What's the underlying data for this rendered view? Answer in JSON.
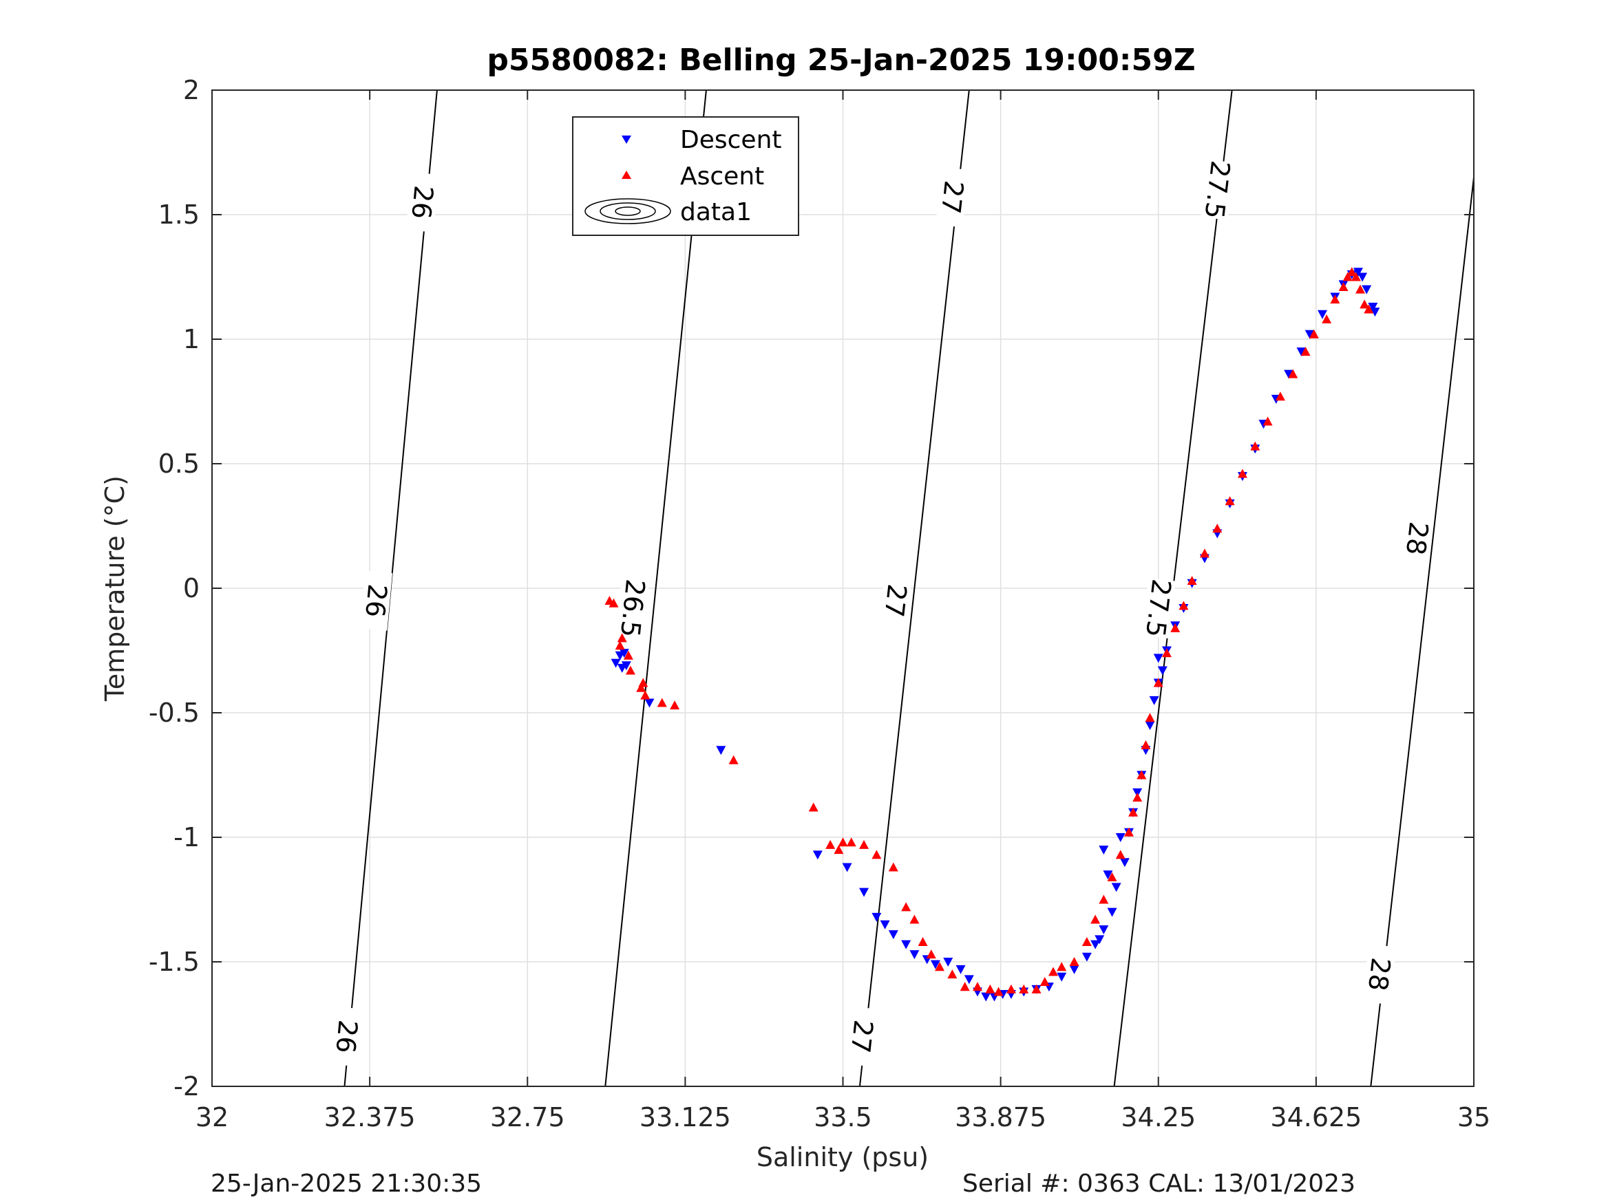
{
  "chart_data": {
    "type": "scatter",
    "title": "p5580082: Belling 25-Jan-2025 19:00:59Z",
    "xlabel": "Salinity (psu)",
    "ylabel": "Temperature (°C)",
    "xlim": [
      32,
      35
    ],
    "ylim": [
      -2,
      2
    ],
    "xticks": [
      32,
      32.375,
      32.75,
      33.125,
      33.5,
      33.875,
      34.25,
      34.625,
      35
    ],
    "xtick_labels": [
      "32",
      "32.375",
      "32.75",
      "33.125",
      "33.5",
      "33.875",
      "34.25",
      "34.625",
      "35"
    ],
    "yticks": [
      -2,
      -1.5,
      -1,
      -0.5,
      0,
      0.5,
      1,
      1.5,
      2
    ],
    "ytick_labels": [
      "-2",
      "-1.5",
      "-1",
      "-0.5",
      "0",
      "0.5",
      "1",
      "1.5",
      "2"
    ],
    "grid": true,
    "legend_position": "top-center",
    "legend": [
      "Descent",
      "Ascent",
      "data1"
    ],
    "contour_levels": [
      {
        "level": "26",
        "line": [
          [
            32.315,
            -2
          ],
          [
            32.535,
            2
          ]
        ],
        "label_points": [
          [
            32.32,
            -1.8
          ],
          [
            32.39,
            -0.05
          ],
          [
            32.5,
            1.55
          ]
        ]
      },
      {
        "level": "26.5",
        "line": [
          [
            32.935,
            -2
          ],
          [
            33.175,
            2
          ]
        ],
        "label_points": [
          [
            33.0,
            -0.08
          ],
          [
            33.1,
            1.6
          ]
        ]
      },
      {
        "level": "27",
        "line": [
          [
            33.54,
            -2
          ],
          [
            33.8,
            2
          ]
        ],
        "label_points": [
          [
            33.545,
            -1.8
          ],
          [
            33.625,
            -0.05
          ],
          [
            33.76,
            1.57
          ]
        ]
      },
      {
        "level": "27.5",
        "line": [
          [
            34.145,
            -2
          ],
          [
            34.425,
            2
          ]
        ],
        "label_points": [
          [
            34.25,
            -0.08
          ],
          [
            34.39,
            1.6
          ]
        ]
      },
      {
        "level": "28",
        "line": [
          [
            34.755,
            -2
          ],
          [
            35.0,
            1.65
          ]
        ],
        "label_points": [
          [
            34.775,
            -1.55
          ],
          [
            34.865,
            0.2
          ]
        ]
      }
    ],
    "series": [
      {
        "name": "Descent",
        "color": "#0000ff",
        "marker": "triangle-down",
        "x": [
          32.97,
          32.96,
          32.975,
          32.98,
          32.985,
          33.04,
          33.21,
          33.44,
          33.51,
          33.55,
          33.58,
          33.6,
          33.62,
          33.65,
          33.67,
          33.7,
          33.72,
          33.75,
          33.78,
          33.8,
          33.82,
          33.84,
          33.86,
          33.88,
          33.9,
          33.93,
          33.96,
          33.99,
          34.02,
          34.05,
          34.08,
          34.1,
          34.12,
          34.14,
          34.11,
          34.13,
          34.12,
          34.15,
          34.16,
          34.17,
          34.18,
          34.19,
          34.2,
          34.21,
          34.22,
          34.23,
          34.24,
          34.25,
          34.25,
          34.26,
          34.27,
          34.29,
          34.31,
          34.33,
          34.36,
          34.39,
          34.42,
          34.45,
          34.48,
          34.5,
          34.53,
          34.56,
          34.59,
          34.61,
          34.64,
          34.67,
          34.69,
          34.71,
          34.725,
          34.735,
          34.745,
          34.76,
          34.765
        ],
        "y": [
          -0.27,
          -0.3,
          -0.32,
          -0.26,
          -0.31,
          -0.46,
          -0.65,
          -1.07,
          -1.12,
          -1.22,
          -1.32,
          -1.35,
          -1.39,
          -1.43,
          -1.47,
          -1.49,
          -1.51,
          -1.5,
          -1.53,
          -1.57,
          -1.62,
          -1.64,
          -1.64,
          -1.63,
          -1.63,
          -1.62,
          -1.61,
          -1.6,
          -1.56,
          -1.53,
          -1.48,
          -1.43,
          -1.37,
          -1.3,
          -1.41,
          -1.15,
          -1.05,
          -1.2,
          -1.0,
          -1.1,
          -0.98,
          -0.9,
          -0.82,
          -0.75,
          -0.65,
          -0.55,
          -0.45,
          -0.38,
          -0.28,
          -0.33,
          -0.25,
          -0.15,
          -0.08,
          0.02,
          0.12,
          0.22,
          0.34,
          0.45,
          0.56,
          0.66,
          0.76,
          0.86,
          0.95,
          1.02,
          1.1,
          1.17,
          1.22,
          1.26,
          1.27,
          1.25,
          1.2,
          1.13,
          1.11
        ]
      },
      {
        "name": "Ascent",
        "color": "#ff0000",
        "marker": "triangle-up",
        "x": [
          32.945,
          32.955,
          32.97,
          32.975,
          32.99,
          32.995,
          33.02,
          33.025,
          33.03,
          33.07,
          33.1,
          33.24,
          33.43,
          33.47,
          33.49,
          33.5,
          33.52,
          33.55,
          33.58,
          33.62,
          33.65,
          33.67,
          33.69,
          33.71,
          33.73,
          33.76,
          33.79,
          33.82,
          33.85,
          33.87,
          33.9,
          33.93,
          33.96,
          33.98,
          34.0,
          34.02,
          34.05,
          34.08,
          34.1,
          34.12,
          34.14,
          34.16,
          34.18,
          34.19,
          34.2,
          34.21,
          34.22,
          34.23,
          34.25,
          34.27,
          34.29,
          34.31,
          34.33,
          34.36,
          34.39,
          34.42,
          34.45,
          34.48,
          34.51,
          34.54,
          34.57,
          34.6,
          34.62,
          34.65,
          34.67,
          34.69,
          34.7,
          34.71,
          34.72,
          34.73,
          34.74,
          34.75
        ],
        "y": [
          -0.05,
          -0.06,
          -0.23,
          -0.2,
          -0.27,
          -0.33,
          -0.4,
          -0.38,
          -0.43,
          -0.46,
          -0.47,
          -0.69,
          -0.88,
          -1.03,
          -1.05,
          -1.02,
          -1.02,
          -1.03,
          -1.07,
          -1.12,
          -1.28,
          -1.33,
          -1.42,
          -1.47,
          -1.52,
          -1.55,
          -1.6,
          -1.6,
          -1.61,
          -1.62,
          -1.61,
          -1.61,
          -1.61,
          -1.58,
          -1.54,
          -1.52,
          -1.5,
          -1.42,
          -1.33,
          -1.25,
          -1.16,
          -1.07,
          -0.98,
          -0.9,
          -0.84,
          -0.75,
          -0.63,
          -0.52,
          -0.38,
          -0.26,
          -0.16,
          -0.07,
          0.03,
          0.14,
          0.24,
          0.35,
          0.46,
          0.57,
          0.67,
          0.77,
          0.86,
          0.95,
          1.02,
          1.08,
          1.16,
          1.21,
          1.25,
          1.27,
          1.25,
          1.2,
          1.14,
          1.12
        ]
      }
    ]
  },
  "footer": {
    "left": "25-Jan-2025 21:30:35",
    "right": "Serial #: 0363  CAL: 13/01/2023"
  }
}
